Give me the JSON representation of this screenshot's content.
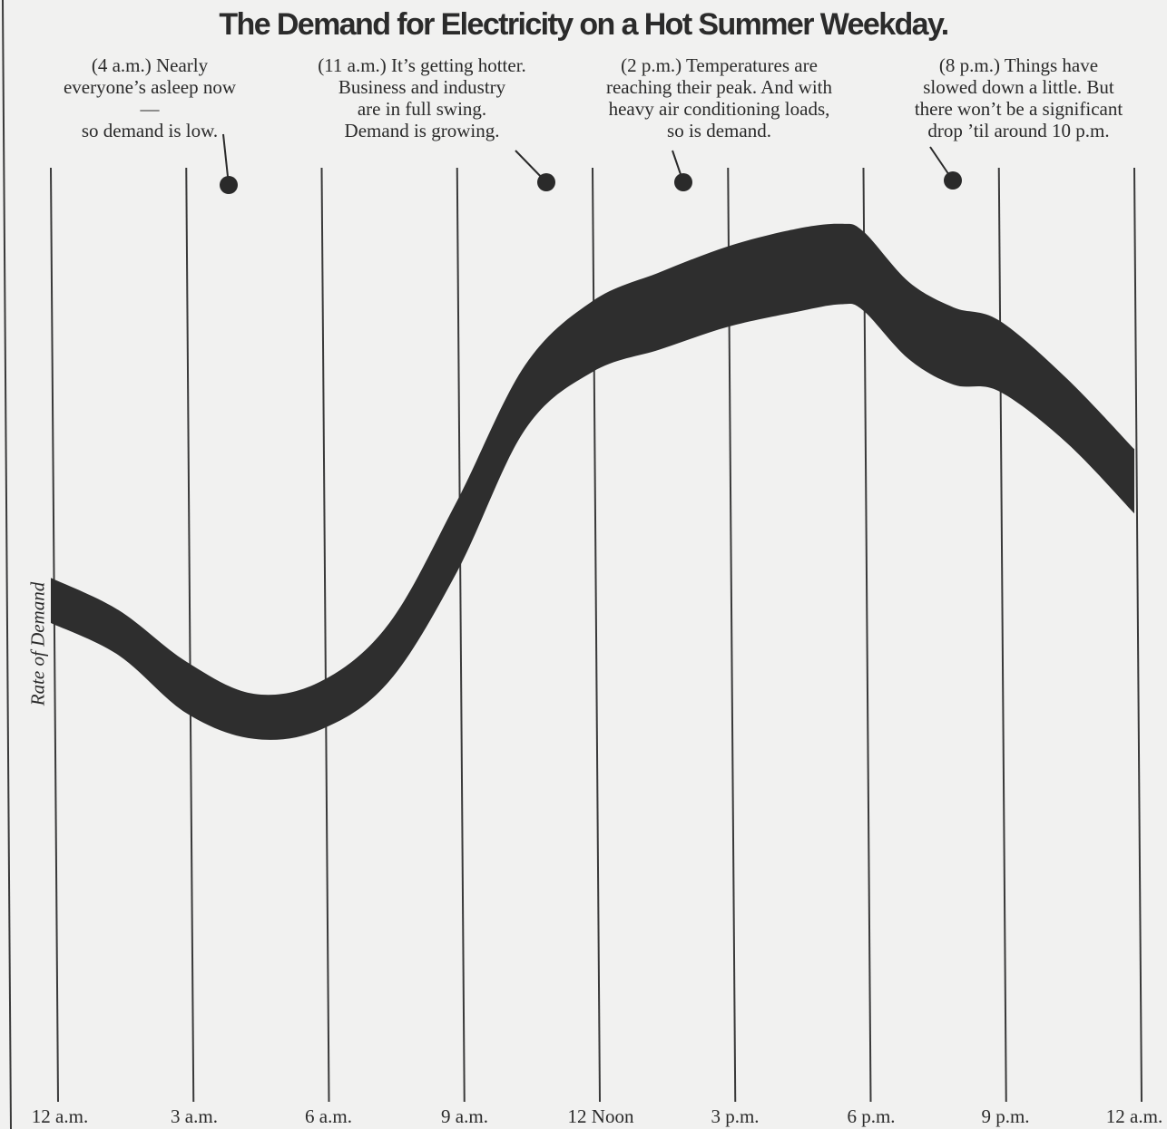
{
  "chart_data": {
    "type": "area",
    "title": "The Demand for Electricity on a Hot Summer Weekday.",
    "ylabel": "Rate of Demand",
    "xlabel": "",
    "grid": "vertical",
    "categories": [
      "12 a.m.",
      "3 a.m.",
      "6 a.m.",
      "9 a.m.",
      "12 Noon",
      "3 p.m.",
      "6 p.m.",
      "9 p.m.",
      "12 a.m."
    ],
    "x_hours": [
      0,
      1.5,
      3,
      4.5,
      6,
      7.5,
      9,
      10.5,
      12,
      13.5,
      15,
      16.5,
      17.5,
      18,
      19,
      20,
      21,
      22.5,
      24
    ],
    "band_upper": [
      37,
      32,
      24,
      19,
      21,
      30,
      49,
      70,
      80,
      84.5,
      88.5,
      91.2,
      92,
      90.8,
      83,
      79,
      77,
      68,
      57
    ],
    "band_lower": [
      30,
      25,
      16,
      12,
      13.5,
      21,
      38,
      60,
      69,
      72.5,
      76,
      78.3,
      79.5,
      78.5,
      71,
      67,
      66,
      58,
      47
    ],
    "y_range": [
      0,
      100
    ],
    "annotations": [
      {
        "text": "(4 a.m.) Nearly\neveryone’s asleep now—\nso demand is low.",
        "hour": 4
      },
      {
        "text": "(11 a.m.) It’s getting hotter.\nBusiness and industry\nare in full swing.\nDemand is growing.",
        "hour": 11
      },
      {
        "text": "(2 p.m.) Temperatures are\nreaching their peak. And with\nheavy air conditioning loads,\nso is demand.",
        "hour": 14
      },
      {
        "text": "(8 p.m.) Things have\nslowed down a little. But\nthere won’t be a significant\ndrop ’til around 10 p.m.",
        "hour": 20
      }
    ]
  },
  "colors": {
    "band": "#2e2e2e",
    "gridline": "#3a3a3a",
    "paper": "#f1f1f0"
  }
}
